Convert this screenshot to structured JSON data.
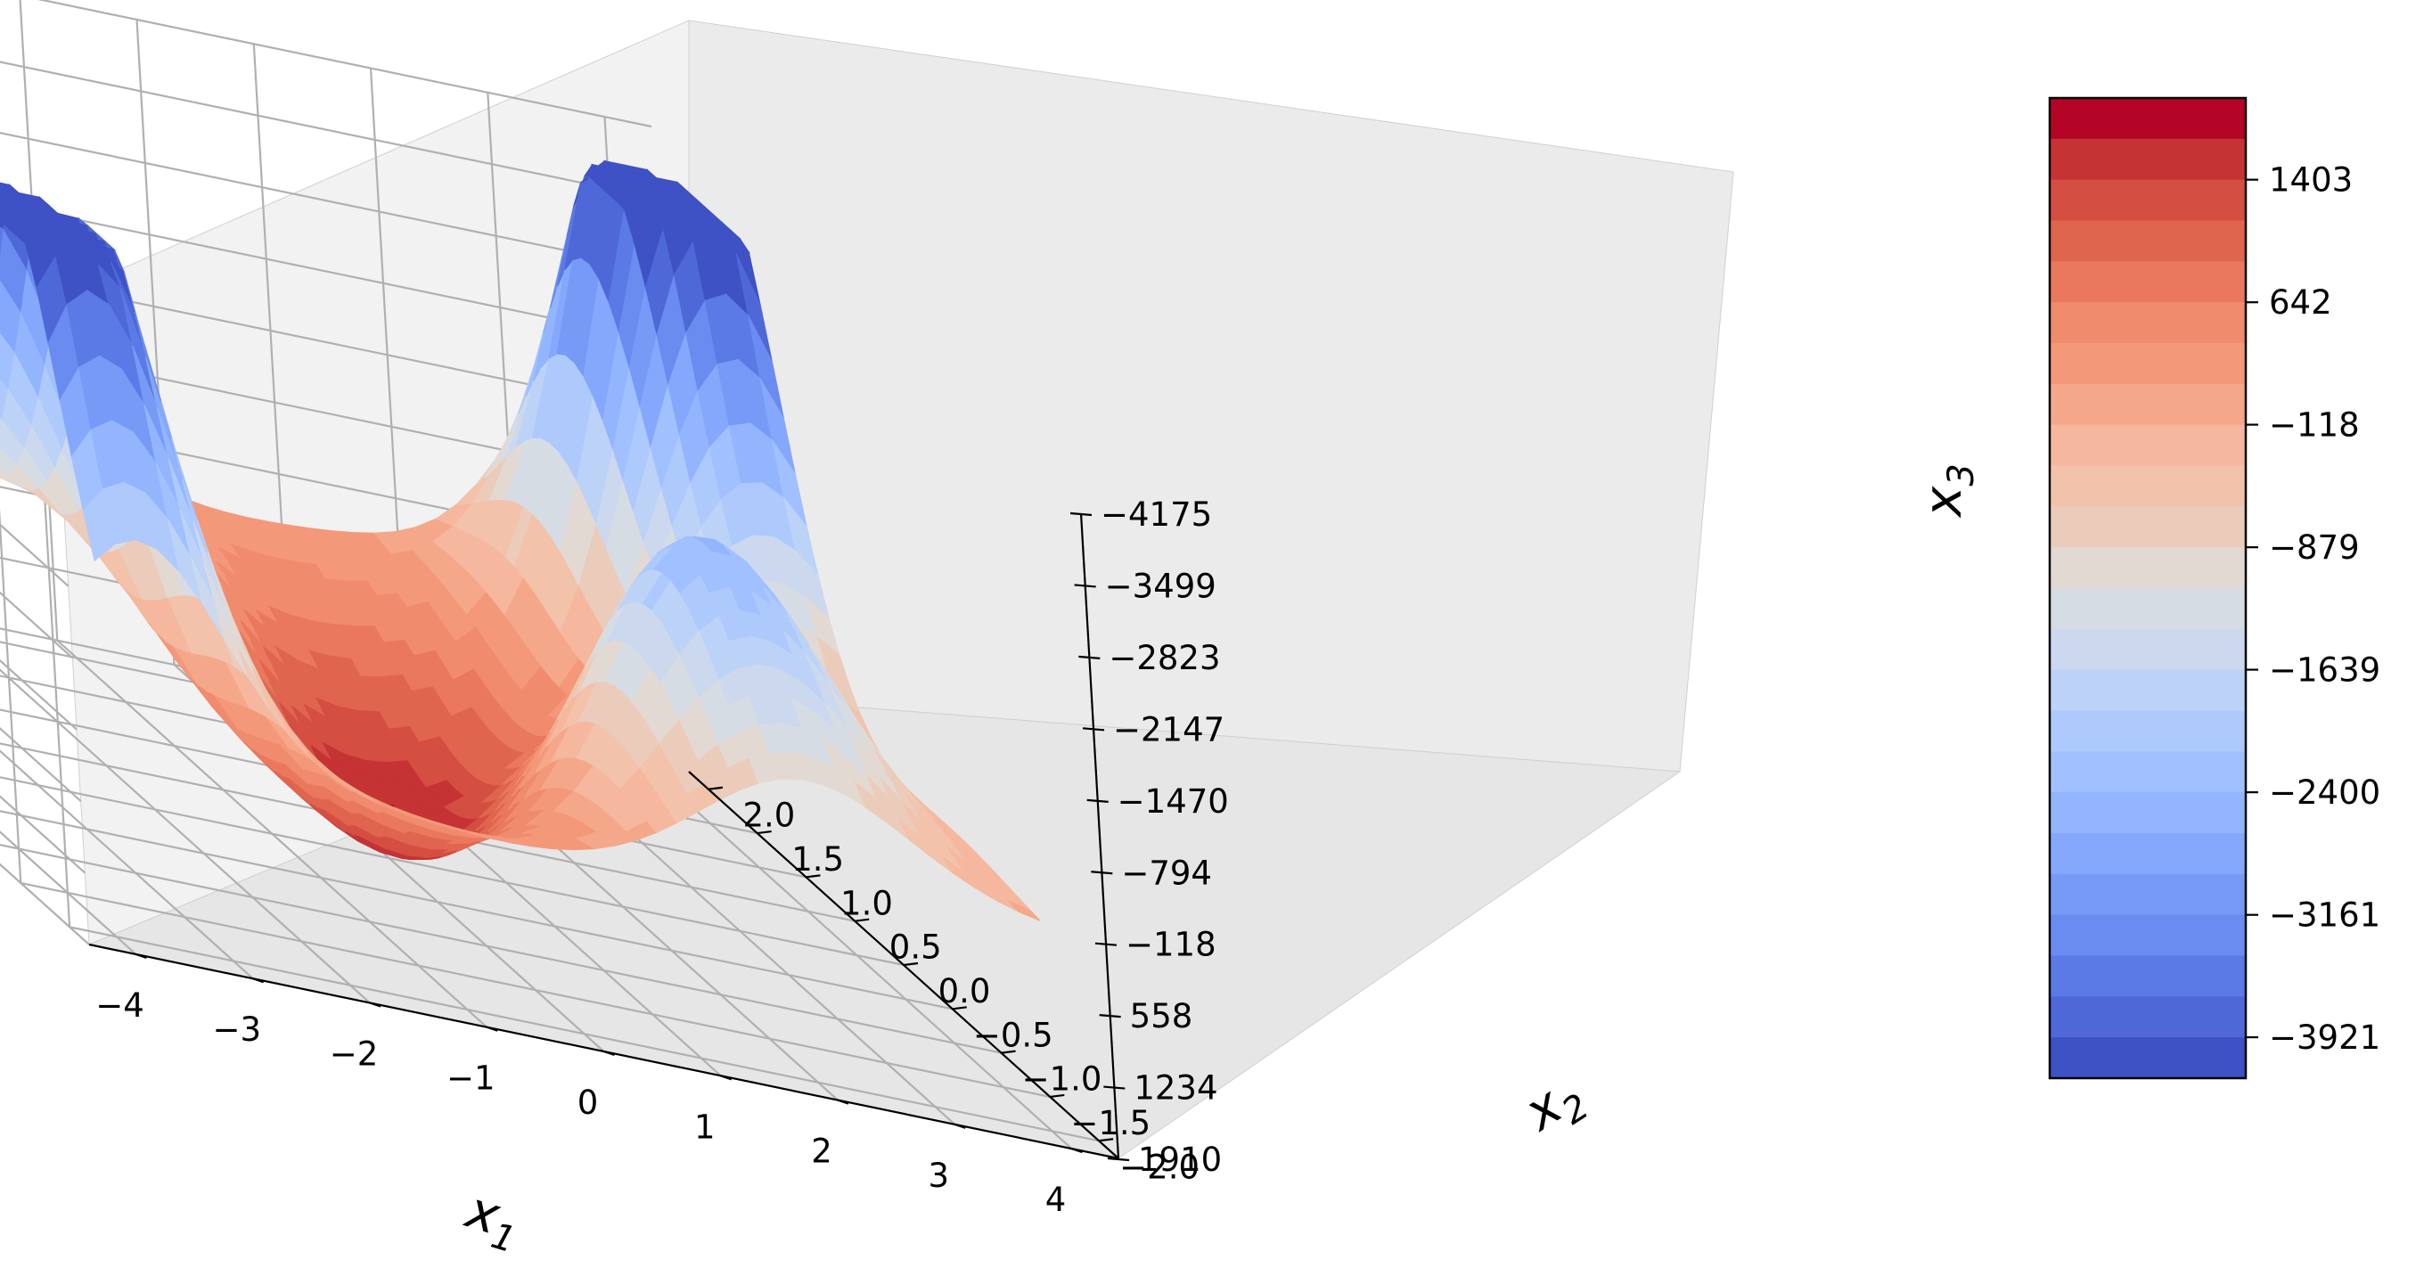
{
  "chart_data": {
    "type": "surface",
    "title": "",
    "xlabel": "x_1",
    "ylabel": "x_2",
    "zlabel": "x_3",
    "xlabel_text": "x",
    "xlabel_sub": "1",
    "ylabel_text": "x",
    "ylabel_sub": "2",
    "zlabel_text": "x",
    "zlabel_sub": "3",
    "xlim": [
      -4.4,
      4.4
    ],
    "ylim": [
      -2.2,
      2.2
    ],
    "zlim": [
      -4175,
      1910
    ],
    "zaxis_inverted": true,
    "colormap": "coolwarm",
    "x_ticks": [
      "−4",
      "−3",
      "−2",
      "−1",
      "0",
      "1",
      "2",
      "3",
      "4"
    ],
    "y_ticks": [
      "−2.0",
      "−1.5",
      "−1.0",
      "−0.5",
      "0.0",
      "0.5",
      "1.0",
      "1.5",
      "2.0"
    ],
    "z_ticks": [
      "−4175",
      "−3499",
      "−2823",
      "−2147",
      "−1470",
      "−794",
      "−118",
      "558",
      "1234",
      "1910"
    ],
    "colorbar": {
      "ticks": [
        "1403",
        "642",
        "−118",
        "−879",
        "−1639",
        "−2400",
        "−3161",
        "−3921"
      ],
      "range": [
        -4175,
        1910
      ],
      "levels": 24,
      "colors": [
        "#b40426",
        "#c53334",
        "#d44e41",
        "#e0654f",
        "#e9785d",
        "#f08b6e",
        "#f4987a",
        "#f5a889",
        "#f5b79e",
        "#f2c2ab",
        "#ebccbb",
        "#e3d9d3",
        "#d6dce4",
        "#cbd8ee",
        "#bcd2f7",
        "#aec9fc",
        "#a1c0ff",
        "#93b5fe",
        "#85a8fc",
        "#779af7",
        "#6a8bef",
        "#5b7ae5",
        "#4e68d8",
        "#3e51c5"
      ]
    },
    "surface_description": "z rises to about 1900 at the center (0,0), dips to about -4000 near x1=-3.5,x2=-1 and x1=3.5,x2=1, and about -2000 near x1=-2,x2=1 and x1=2,x2=-1"
  }
}
